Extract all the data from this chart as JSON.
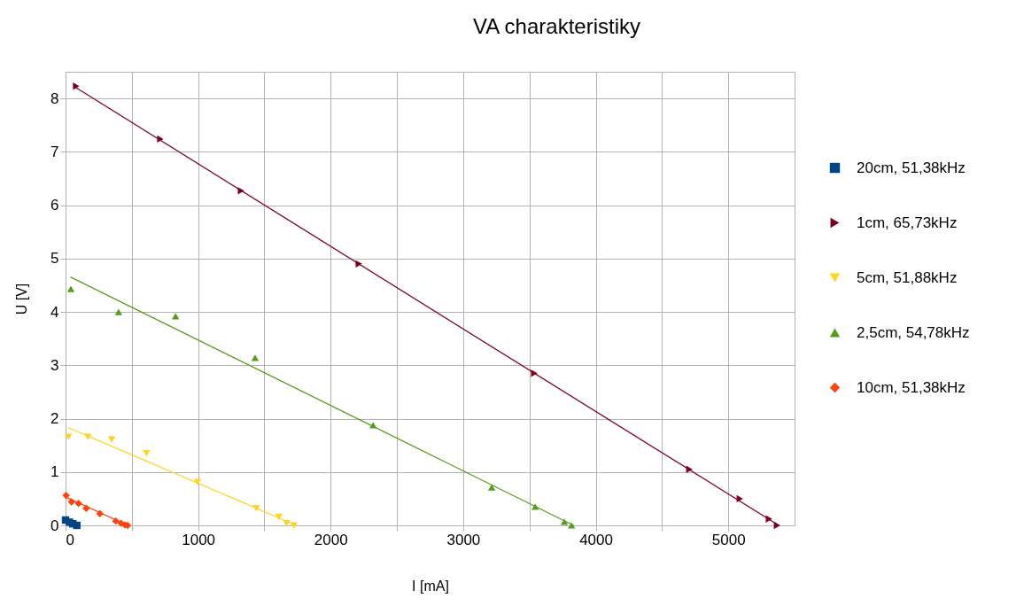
{
  "chart_data": {
    "type": "scatter",
    "title": "VA charakteristiky",
    "xlabel": "I [mA]",
    "ylabel": "U [V]",
    "xlim": [
      0,
      5500
    ],
    "ylim": [
      0,
      8.5
    ],
    "xticks": [
      0,
      {
        "value": 500,
        "label": null
      },
      1000,
      {
        "value": 1500,
        "label": null
      },
      2000,
      {
        "value": 2500,
        "label": null
      },
      3000,
      {
        "value": 3500,
        "label": null
      },
      4000,
      {
        "value": 4500,
        "label": null
      },
      5000
    ],
    "yticks": [
      0,
      1,
      2,
      3,
      4,
      5,
      6,
      7,
      8
    ],
    "grid": true,
    "legend": "right",
    "series": [
      {
        "name": "20cm, 51,38kHz",
        "color": "#004586",
        "marker": "square",
        "x": [
          0,
          30,
          55,
          85
        ],
        "values": [
          0.1,
          0.06,
          0.03,
          0
        ]
      },
      {
        "name": "1cm, 65,73kHz",
        "color": "#7e0021",
        "marker": "triangle-right",
        "x": [
          80,
          715,
          1324,
          2213,
          3536,
          4706,
          5087,
          5307,
          5368
        ],
        "values": [
          8.23,
          7.24,
          6.27,
          4.9,
          2.85,
          1.05,
          0.5,
          0.12,
          0
        ]
      },
      {
        "name": "5cm, 51,88kHz",
        "color": "#ffd320",
        "marker": "triangle-down",
        "x": [
          22,
          169,
          348,
          610,
          996,
          1439,
          1609,
          1667,
          1722
        ],
        "values": [
          1.66,
          1.66,
          1.61,
          1.35,
          0.81,
          0.32,
          0.16,
          0.04,
          0
        ]
      },
      {
        "name": "2,5cm, 54,78kHz",
        "color": "#579d1c",
        "marker": "triangle-up",
        "x": [
          40,
          400,
          830,
          1430,
          2320,
          3215,
          3543,
          3763,
          3817
        ],
        "values": [
          4.43,
          4,
          3.92,
          3.14,
          1.88,
          0.71,
          0.35,
          0.07,
          0
        ]
      },
      {
        "name": "10cm, 51,38kHz",
        "color": "#ff420e",
        "marker": "diamond",
        "x": [
          4,
          45,
          98,
          156,
          259,
          379,
          419,
          448,
          468
        ],
        "values": [
          0.56,
          0.44,
          0.41,
          0.32,
          0.22,
          0.08,
          0.04,
          0.01,
          0
        ]
      },
      {
        "type": "line",
        "color": "#7e0021",
        "x": [
          80,
          5380
        ],
        "values": [
          8.2,
          0
        ]
      },
      {
        "type": "line",
        "color": "#ffd320",
        "x": [
          22,
          1740
        ],
        "values": [
          1.83,
          0
        ]
      },
      {
        "type": "line",
        "color": "#579d1c",
        "x": [
          40,
          3833
        ],
        "values": [
          4.65,
          0
        ]
      },
      {
        "type": "line",
        "color": "#ff420e",
        "x": [
          4,
          470
        ],
        "values": [
          0.53,
          0
        ]
      }
    ]
  }
}
